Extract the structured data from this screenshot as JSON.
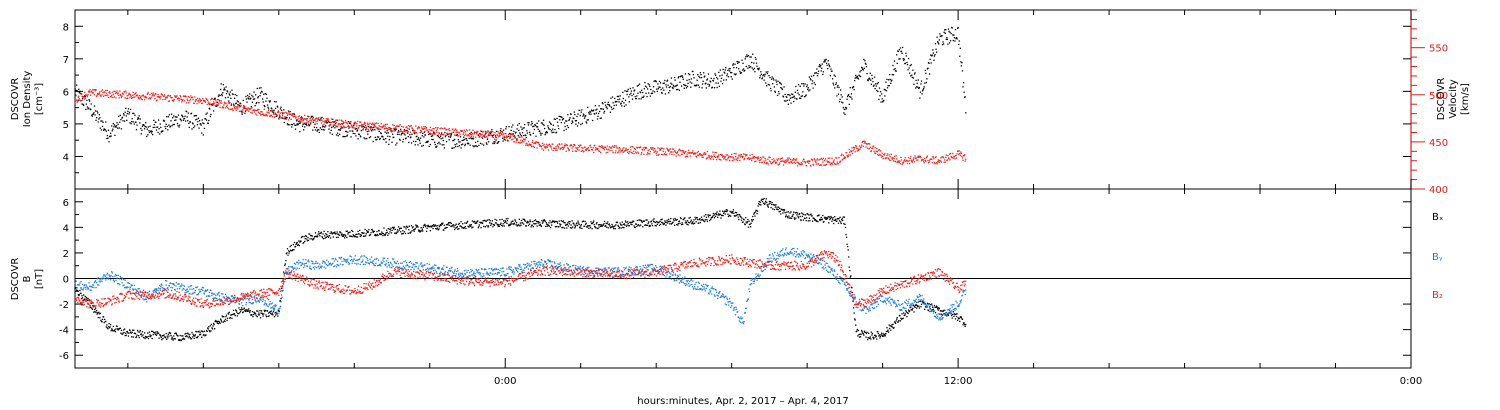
{
  "figure": {
    "xlabel": "hours:minutes, Apr.  2, 2017 – Apr.  4, 2017",
    "x_tick_labels": [
      {
        "hour": 24,
        "label": "0:00"
      },
      {
        "hour": 36,
        "label": "12:00"
      },
      {
        "hour": 48,
        "label": "0:00"
      }
    ],
    "x_range_hours": [
      12.6,
      48.0
    ],
    "x_minor_tick_step_hours": 2
  },
  "colors": {
    "black": "#000000",
    "red": "#e8231e",
    "blue": "#1f7fd6",
    "axis_red": "#d42020"
  },
  "chart_data": [
    {
      "type": "scatter",
      "panel": "top",
      "ylabel_left": [
        "DSCOVR",
        "Ion Density",
        "[cm⁻³]"
      ],
      "ylabel_right": [
        "DSCOVR",
        "Velocity",
        "[km/s]"
      ],
      "y_left_range": [
        3.0,
        8.5
      ],
      "y_left_ticks": [
        4,
        5,
        6,
        7,
        8
      ],
      "y_right_range": [
        400,
        590
      ],
      "y_right_ticks": [
        400,
        450,
        500,
        550
      ],
      "series": [
        {
          "color_key": "black",
          "axis": "left",
          "x_hours": [
            12.6,
            13.0,
            13.5,
            14.0,
            14.5,
            15.0,
            15.5,
            16.0,
            16.5,
            17.0,
            17.5,
            18.0,
            18.5,
            19.0,
            19.5,
            20.0,
            20.5,
            21.0,
            21.5,
            22.0,
            22.5,
            23.0,
            23.5,
            24.0,
            24.5,
            25.0,
            25.5,
            26.0,
            26.5,
            27.0,
            27.5,
            28.0,
            28.5,
            29.0,
            29.5,
            30.0,
            30.5,
            31.0,
            31.5,
            32.0,
            32.5,
            33.0,
            33.5,
            34.0,
            34.5,
            35.0,
            35.5,
            36.0,
            36.2
          ],
          "values": [
            6.0,
            5.5,
            4.7,
            5.3,
            4.8,
            5.0,
            5.2,
            4.9,
            6.1,
            5.5,
            5.9,
            5.4,
            5.0,
            5.0,
            4.9,
            4.8,
            4.7,
            4.6,
            4.6,
            4.5,
            4.5,
            4.5,
            4.6,
            4.7,
            4.8,
            4.9,
            5.0,
            5.2,
            5.4,
            5.7,
            6.0,
            6.1,
            6.2,
            6.4,
            6.3,
            6.6,
            7.0,
            6.3,
            5.8,
            6.1,
            6.9,
            5.5,
            6.8,
            5.8,
            7.3,
            6.0,
            7.6,
            7.8,
            5.5
          ],
          "jitter": 0.25
        },
        {
          "color_key": "red",
          "axis": "right",
          "x_hours": [
            12.6,
            13.0,
            14.0,
            15.0,
            16.0,
            16.5,
            17.0,
            18.0,
            19.0,
            20.0,
            21.0,
            22.0,
            23.0,
            24.0,
            25.0,
            26.0,
            27.0,
            28.0,
            29.0,
            30.0,
            30.5,
            31.0,
            32.0,
            32.8,
            33.5,
            34.0,
            34.5,
            35.0,
            35.5,
            36.0,
            36.2
          ],
          "values": [
            495,
            502,
            500,
            497,
            494,
            490,
            485,
            479,
            472,
            468,
            465,
            462,
            459,
            456,
            445,
            443,
            442,
            440,
            437,
            434,
            433,
            430,
            428,
            430,
            448,
            436,
            430,
            432,
            430,
            437,
            433
          ],
          "jitter": 4
        }
      ]
    },
    {
      "type": "scatter",
      "panel": "bottom",
      "ylabel_left": [
        "DSCOVR",
        "B",
        "[nT]"
      ],
      "y_range": [
        -7,
        7
      ],
      "y_ticks": [
        -6,
        -4,
        -2,
        0,
        2,
        4,
        6
      ],
      "zero_line": true,
      "legend": [
        "Bₓ",
        "Bᵧ",
        "B₂"
      ],
      "series": [
        {
          "name": "Bₓ",
          "color_key": "black",
          "x_hours": [
            12.6,
            13.0,
            13.5,
            14.0,
            15.0,
            15.5,
            16.0,
            16.5,
            17.0,
            17.5,
            18.0,
            18.2,
            18.6,
            19.0,
            20.0,
            21.0,
            22.0,
            23.0,
            24.0,
            25.0,
            26.0,
            27.0,
            28.0,
            29.0,
            30.0,
            30.5,
            30.8,
            31.0,
            31.5,
            32.0,
            33.0,
            33.3,
            33.6,
            34.0,
            34.5,
            35.0,
            35.5,
            36.0,
            36.2
          ],
          "values": [
            -0.8,
            -2.0,
            -3.8,
            -4.3,
            -4.5,
            -4.6,
            -4.3,
            -3.2,
            -2.5,
            -2.8,
            -2.7,
            2.0,
            3.0,
            3.4,
            3.5,
            3.7,
            4.0,
            4.2,
            4.4,
            4.3,
            4.2,
            4.2,
            4.4,
            4.5,
            5.2,
            4.2,
            6.2,
            5.8,
            5.0,
            4.8,
            4.5,
            -4.2,
            -4.5,
            -4.4,
            -3.0,
            -2.0,
            -2.5,
            -3.0,
            -3.5
          ],
          "jitter": 0.3
        },
        {
          "name": "Bᵧ",
          "color_key": "blue",
          "x_hours": [
            12.6,
            13.0,
            13.5,
            14.0,
            14.5,
            15.0,
            15.5,
            16.0,
            16.5,
            17.0,
            17.5,
            18.0,
            18.2,
            18.6,
            19.0,
            20.0,
            21.0,
            22.0,
            23.0,
            24.0,
            25.0,
            26.0,
            27.0,
            28.0,
            29.0,
            29.5,
            30.0,
            30.3,
            30.5,
            31.0,
            31.5,
            32.0,
            32.5,
            33.0,
            33.3,
            33.6,
            34.0,
            34.5,
            35.0,
            35.5,
            36.0,
            36.2
          ],
          "values": [
            -0.5,
            -0.7,
            0.3,
            -0.5,
            -1.5,
            -0.5,
            -0.8,
            -1.0,
            -1.5,
            -1.8,
            -1.5,
            -2.5,
            0.5,
            1.2,
            1.0,
            1.5,
            1.2,
            0.8,
            0.4,
            0.5,
            1.2,
            0.6,
            0.5,
            0.8,
            -0.5,
            -1.0,
            -2.0,
            -3.5,
            -0.5,
            1.5,
            2.2,
            1.8,
            1.0,
            -0.5,
            -2.0,
            -2.5,
            -1.5,
            -2.2,
            -1.5,
            -3.0,
            -2.0,
            -1.0
          ],
          "jitter": 0.35
        },
        {
          "name": "B₂",
          "color_key": "red",
          "x_hours": [
            12.6,
            13.0,
            13.5,
            14.0,
            15.0,
            15.5,
            16.0,
            16.5,
            17.0,
            17.5,
            18.0,
            18.2,
            18.6,
            19.0,
            20.0,
            20.5,
            21.0,
            22.0,
            23.0,
            24.0,
            25.0,
            26.0,
            27.0,
            28.0,
            29.0,
            30.0,
            31.0,
            32.0,
            32.5,
            32.8,
            33.3,
            33.6,
            34.0,
            34.5,
            35.0,
            35.5,
            36.0,
            36.2
          ],
          "values": [
            -1.5,
            -2.0,
            -1.8,
            -1.3,
            -1.2,
            -1.5,
            -2.0,
            -1.8,
            -1.5,
            -1.2,
            -1.0,
            0.5,
            0.0,
            -0.5,
            -1.0,
            -0.5,
            0.5,
            0.2,
            -0.2,
            -0.3,
            0.6,
            0.5,
            0.3,
            0.5,
            1.2,
            1.5,
            1.0,
            1.0,
            2.0,
            1.5,
            -2.0,
            -1.8,
            -1.0,
            -0.5,
            0.0,
            0.5,
            -0.8,
            -0.5
          ],
          "jitter": 0.35
        }
      ]
    }
  ]
}
